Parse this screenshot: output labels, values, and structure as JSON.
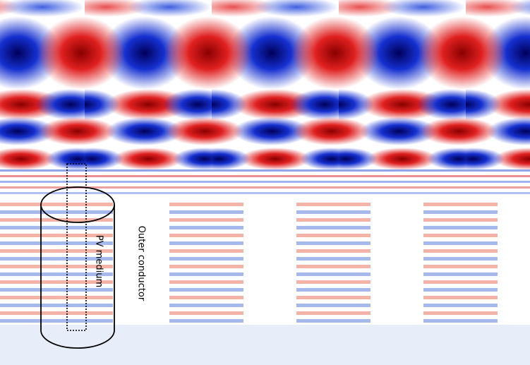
{
  "labels": {
    "pv_medium": "PV medium",
    "outer_conductor": "Outer conductor"
  }
}
